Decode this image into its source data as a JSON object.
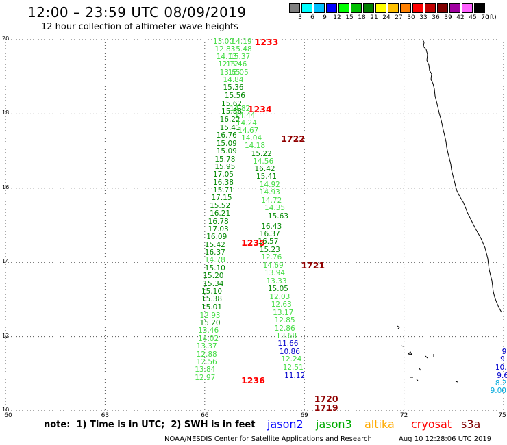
{
  "header": {
    "title": "12:00 – 23:59 UTC 08/09/2019",
    "subtitle": "12 hour collection of altimeter wave heights"
  },
  "legend": {
    "unit": "(ft)",
    "bins": [
      {
        "label": "3",
        "color": "#808080"
      },
      {
        "label": "6",
        "color": "#00ffff"
      },
      {
        "label": "9",
        "color": "#00c0ff"
      },
      {
        "label": "12",
        "color": "#0000ff"
      },
      {
        "label": "15",
        "color": "#00ff00"
      },
      {
        "label": "18",
        "color": "#00c000"
      },
      {
        "label": "21",
        "color": "#008000"
      },
      {
        "label": "24",
        "color": "#ffff00"
      },
      {
        "label": "27",
        "color": "#ffc000"
      },
      {
        "label": "30",
        "color": "#ff8000"
      },
      {
        "label": "33",
        "color": "#ff0000"
      },
      {
        "label": "36",
        "color": "#c00000"
      },
      {
        "label": "39",
        "color": "#800000"
      },
      {
        "label": "42",
        "color": "#a000a0"
      },
      {
        "label": "45",
        "color": "#ff60ff"
      },
      {
        "label": "70",
        "color": "#000000"
      }
    ]
  },
  "axes": {
    "x_ticks": [
      "60",
      "63",
      "66",
      "69",
      "72",
      "75"
    ],
    "y_ticks": [
      "20",
      "18",
      "16",
      "14",
      "12",
      "10"
    ],
    "x_range": [
      60,
      75
    ],
    "y_range": [
      10,
      20
    ]
  },
  "passes": [
    {
      "label": "1233",
      "color": "#ff0000",
      "lon": 67.5,
      "lat": 19.9
    },
    {
      "label": "1234",
      "color": "#ff0000",
      "lon": 67.3,
      "lat": 18.1
    },
    {
      "label": "1722",
      "color": "#900000",
      "lon": 68.3,
      "lat": 17.3
    },
    {
      "label": "1235",
      "color": "#ff0000",
      "lon": 67.1,
      "lat": 14.5
    },
    {
      "label": "1721",
      "color": "#900000",
      "lon": 68.9,
      "lat": 13.9
    },
    {
      "label": "1236",
      "color": "#ff0000",
      "lon": 67.1,
      "lat": 10.8
    },
    {
      "label": "1720",
      "color": "#900000",
      "lon": 69.3,
      "lat": 10.3
    },
    {
      "label": "1719",
      "color": "#900000",
      "lon": 69.3,
      "lat": 10.05
    }
  ],
  "observations": [
    {
      "v": "13.00",
      "lon": 66.25,
      "lat": 19.94,
      "c": "#44dd44"
    },
    {
      "v": "14.19",
      "lon": 66.8,
      "lat": 19.94,
      "c": "#44dd44"
    },
    {
      "v": "12.83",
      "lon": 66.3,
      "lat": 19.74,
      "c": "#44dd44"
    },
    {
      "v": "15.48",
      "lon": 66.8,
      "lat": 19.74,
      "c": "#44dd44"
    },
    {
      "v": "14.13",
      "lon": 66.35,
      "lat": 19.53,
      "c": "#44dd44"
    },
    {
      "v": "15.37",
      "lon": 66.75,
      "lat": 19.53,
      "c": "#44dd44"
    },
    {
      "v": "12.12",
      "lon": 66.4,
      "lat": 19.33,
      "c": "#44dd44"
    },
    {
      "v": "15.46",
      "lon": 66.65,
      "lat": 19.33,
      "c": "#44dd44"
    },
    {
      "v": "13.65",
      "lon": 66.45,
      "lat": 19.12,
      "c": "#44dd44"
    },
    {
      "v": "15.05",
      "lon": 66.7,
      "lat": 19.12,
      "c": "#44dd44"
    },
    {
      "v": "14.84",
      "lon": 66.55,
      "lat": 18.91,
      "c": "#44dd44"
    },
    {
      "v": "15.36",
      "lon": 66.55,
      "lat": 18.7,
      "c": "#008800"
    },
    {
      "v": "15.56",
      "lon": 66.6,
      "lat": 18.48,
      "c": "#008800"
    },
    {
      "v": "15.62",
      "lon": 66.5,
      "lat": 18.27,
      "c": "#008800"
    },
    {
      "v": "14.82",
      "lon": 66.75,
      "lat": 18.14,
      "c": "#44dd44"
    },
    {
      "v": "15.88",
      "lon": 66.5,
      "lat": 18.06,
      "c": "#008800"
    },
    {
      "v": "14.44",
      "lon": 66.9,
      "lat": 17.95,
      "c": "#44dd44"
    },
    {
      "v": "16.22",
      "lon": 66.45,
      "lat": 17.84,
      "c": "#008800"
    },
    {
      "v": "14.24",
      "lon": 66.95,
      "lat": 17.75,
      "c": "#44dd44"
    },
    {
      "v": "15.41",
      "lon": 66.45,
      "lat": 17.62,
      "c": "#008800"
    },
    {
      "v": "14.67",
      "lon": 67.0,
      "lat": 17.55,
      "c": "#44dd44"
    },
    {
      "v": "16.76",
      "lon": 66.35,
      "lat": 17.41,
      "c": "#008800"
    },
    {
      "v": "14.04",
      "lon": 67.1,
      "lat": 17.34,
      "c": "#44dd44"
    },
    {
      "v": "15.09",
      "lon": 66.35,
      "lat": 17.2,
      "c": "#008800"
    },
    {
      "v": "14.18",
      "lon": 67.2,
      "lat": 17.14,
      "c": "#44dd44"
    },
    {
      "v": "15.09",
      "lon": 66.35,
      "lat": 16.99,
      "c": "#008800"
    },
    {
      "v": "15.22",
      "lon": 67.4,
      "lat": 16.92,
      "c": "#008800"
    },
    {
      "v": "15.78",
      "lon": 66.3,
      "lat": 16.78,
      "c": "#008800"
    },
    {
      "v": "14.56",
      "lon": 67.45,
      "lat": 16.72,
      "c": "#44dd44"
    },
    {
      "v": "15.95",
      "lon": 66.3,
      "lat": 16.57,
      "c": "#008800"
    },
    {
      "v": "16.42",
      "lon": 67.5,
      "lat": 16.51,
      "c": "#008800"
    },
    {
      "v": "17.05",
      "lon": 66.25,
      "lat": 16.36,
      "c": "#008800"
    },
    {
      "v": "15.41",
      "lon": 67.55,
      "lat": 16.31,
      "c": "#008800"
    },
    {
      "v": "16.38",
      "lon": 66.25,
      "lat": 16.15,
      "c": "#008800"
    },
    {
      "v": "14.92",
      "lon": 67.65,
      "lat": 16.08,
      "c": "#44dd44"
    },
    {
      "v": "15.71",
      "lon": 66.25,
      "lat": 15.94,
      "c": "#008800"
    },
    {
      "v": "14.93",
      "lon": 67.65,
      "lat": 15.88,
      "c": "#44dd44"
    },
    {
      "v": "17.15",
      "lon": 66.2,
      "lat": 15.73,
      "c": "#008800"
    },
    {
      "v": "14.72",
      "lon": 67.7,
      "lat": 15.67,
      "c": "#44dd44"
    },
    {
      "v": "15.52",
      "lon": 66.15,
      "lat": 15.52,
      "c": "#008800"
    },
    {
      "v": "14.35",
      "lon": 67.8,
      "lat": 15.46,
      "c": "#44dd44"
    },
    {
      "v": "16.21",
      "lon": 66.15,
      "lat": 15.31,
      "c": "#008800"
    },
    {
      "v": "15.63",
      "lon": 67.9,
      "lat": 15.24,
      "c": "#008800"
    },
    {
      "v": "16.78",
      "lon": 66.1,
      "lat": 15.1,
      "c": "#008800"
    },
    {
      "v": "16.43",
      "lon": 67.7,
      "lat": 14.97,
      "c": "#008800"
    },
    {
      "v": "17.03",
      "lon": 66.1,
      "lat": 14.89,
      "c": "#008800"
    },
    {
      "v": "16.37",
      "lon": 67.65,
      "lat": 14.76,
      "c": "#008800"
    },
    {
      "v": "16.09",
      "lon": 66.05,
      "lat": 14.68,
      "c": "#008800"
    },
    {
      "v": "16.57",
      "lon": 67.6,
      "lat": 14.55,
      "c": "#008800"
    },
    {
      "v": "15.42",
      "lon": 66.0,
      "lat": 14.47,
      "c": "#008800"
    },
    {
      "v": "15.23",
      "lon": 67.65,
      "lat": 14.34,
      "c": "#008800"
    },
    {
      "v": "16.37",
      "lon": 66.0,
      "lat": 14.26,
      "c": "#008800"
    },
    {
      "v": "12.76",
      "lon": 67.7,
      "lat": 14.13,
      "c": "#44dd44"
    },
    {
      "v": "14.78",
      "lon": 66.0,
      "lat": 14.05,
      "c": "#44dd44"
    },
    {
      "v": "14.69",
      "lon": 67.75,
      "lat": 13.92,
      "c": "#44dd44"
    },
    {
      "v": "15.10",
      "lon": 66.0,
      "lat": 13.84,
      "c": "#008800"
    },
    {
      "v": "13.94",
      "lon": 67.8,
      "lat": 13.71,
      "c": "#44dd44"
    },
    {
      "v": "15.20",
      "lon": 65.95,
      "lat": 13.63,
      "c": "#008800"
    },
    {
      "v": "13.33",
      "lon": 67.85,
      "lat": 13.49,
      "c": "#44dd44"
    },
    {
      "v": "15.34",
      "lon": 65.95,
      "lat": 13.42,
      "c": "#008800"
    },
    {
      "v": "15.05",
      "lon": 67.9,
      "lat": 13.28,
      "c": "#008800"
    },
    {
      "v": "15.10",
      "lon": 65.9,
      "lat": 13.21,
      "c": "#008800"
    },
    {
      "v": "12.03",
      "lon": 67.95,
      "lat": 13.07,
      "c": "#44dd44"
    },
    {
      "v": "15.38",
      "lon": 65.9,
      "lat": 13.0,
      "c": "#008800"
    },
    {
      "v": "12.63",
      "lon": 68.0,
      "lat": 12.86,
      "c": "#44dd44"
    },
    {
      "v": "15.01",
      "lon": 65.9,
      "lat": 12.79,
      "c": "#008800"
    },
    {
      "v": "13.17",
      "lon": 68.05,
      "lat": 12.64,
      "c": "#44dd44"
    },
    {
      "v": "12.93",
      "lon": 65.85,
      "lat": 12.57,
      "c": "#44dd44"
    },
    {
      "v": "12.85",
      "lon": 68.1,
      "lat": 12.43,
      "c": "#44dd44"
    },
    {
      "v": "15.20",
      "lon": 65.85,
      "lat": 12.36,
      "c": "#008800"
    },
    {
      "v": "12.86",
      "lon": 68.1,
      "lat": 12.22,
      "c": "#44dd44"
    },
    {
      "v": "13.46",
      "lon": 65.8,
      "lat": 12.15,
      "c": "#44dd44"
    },
    {
      "v": "13.68",
      "lon": 68.15,
      "lat": 12.01,
      "c": "#44dd44"
    },
    {
      "v": "14.02",
      "lon": 65.8,
      "lat": 11.94,
      "c": "#44dd44"
    },
    {
      "v": "11.66",
      "lon": 68.2,
      "lat": 11.8,
      "c": "#0000cc"
    },
    {
      "v": "13.37",
      "lon": 65.75,
      "lat": 11.73,
      "c": "#44dd44"
    },
    {
      "v": "10.86",
      "lon": 68.25,
      "lat": 11.59,
      "c": "#0000cc"
    },
    {
      "v": "12.88",
      "lon": 65.75,
      "lat": 11.52,
      "c": "#44dd44"
    },
    {
      "v": "12.24",
      "lon": 68.3,
      "lat": 11.38,
      "c": "#44dd44"
    },
    {
      "v": "12.56",
      "lon": 65.75,
      "lat": 11.31,
      "c": "#44dd44"
    },
    {
      "v": "12.51",
      "lon": 68.35,
      "lat": 11.16,
      "c": "#44dd44"
    },
    {
      "v": "13.84",
      "lon": 65.7,
      "lat": 11.1,
      "c": "#44dd44"
    },
    {
      "v": "11.12",
      "lon": 68.4,
      "lat": 10.95,
      "c": "#0000cc"
    },
    {
      "v": "12.97",
      "lon": 65.7,
      "lat": 10.89,
      "c": "#44dd44"
    },
    {
      "v": "9",
      "lon": 74.95,
      "lat": 11.59,
      "c": "#0000cc"
    },
    {
      "v": "9.",
      "lon": 74.9,
      "lat": 11.38,
      "c": "#0000cc"
    },
    {
      "v": "10.",
      "lon": 74.75,
      "lat": 11.16,
      "c": "#0000cc"
    },
    {
      "v": "9.6",
      "lon": 74.8,
      "lat": 10.95,
      "c": "#0000cc"
    },
    {
      "v": "8.2",
      "lon": 74.75,
      "lat": 10.74,
      "c": "#00aadd"
    },
    {
      "v": "9.00",
      "lon": 74.6,
      "lat": 10.53,
      "c": "#00aadd"
    }
  ],
  "footer": {
    "note": "note:  1) Time is in UTC;  2) SWH is in feet",
    "satellites": [
      {
        "name": "jason2",
        "color": "#0000ff"
      },
      {
        "name": "jason3",
        "color": "#00aa00"
      },
      {
        "name": "altika",
        "color": "#ffaa00"
      },
      {
        "name": "cryosat",
        "color": "#ff0000"
      },
      {
        "name": "s3a",
        "color": "#800000"
      }
    ],
    "credit": "NOAA/NESDIS Center for Satellite Applications and Research",
    "timestamp": "Aug 10 12:28:06 UTC 2019"
  }
}
